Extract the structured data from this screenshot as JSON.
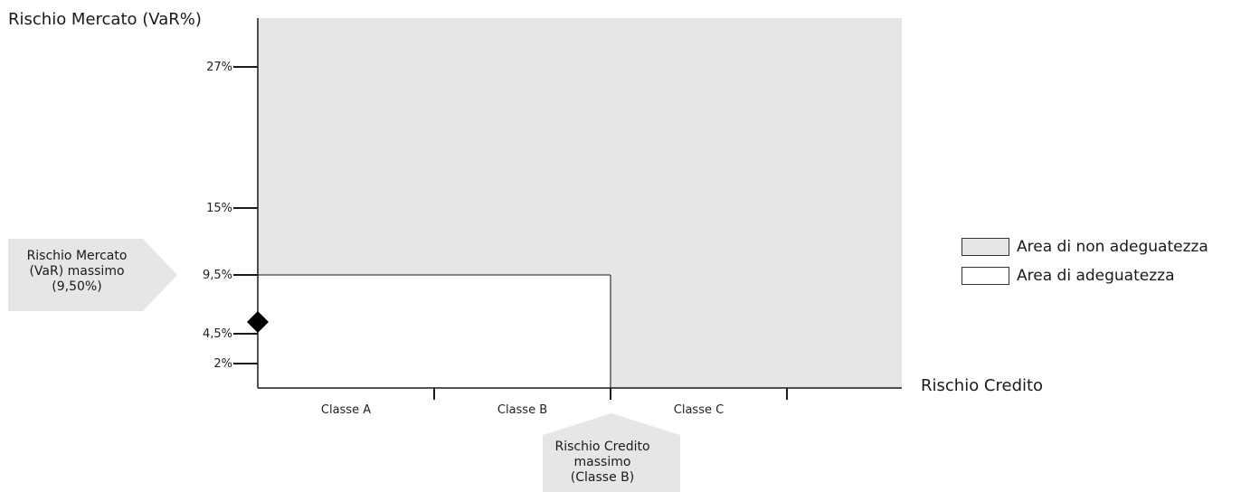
{
  "chart_data": {
    "type": "area",
    "ylabel": "Rischio Mercato (VaR%)",
    "xlabel": "Rischio Credito",
    "y_ticks": [
      {
        "value": 2,
        "label": "2%"
      },
      {
        "value": 4.5,
        "label": "4,5%"
      },
      {
        "value": 9.5,
        "label": "9,5%"
      },
      {
        "value": 15,
        "label": "15%"
      },
      {
        "value": 27,
        "label": "27%"
      }
    ],
    "categories": [
      "Classe A",
      "Classe B",
      "Classe C"
    ],
    "adequacy_limit": {
      "max_var": 9.5,
      "max_credit_class": "Classe B"
    },
    "point": {
      "category": "Classe A",
      "position": "start",
      "value": 5.5
    },
    "legend": [
      {
        "label": "Area di non adeguatezza",
        "color": "#e6e6e6"
      },
      {
        "label": "Area di adeguatezza",
        "color": "#ffffff"
      }
    ],
    "annotations": {
      "var_max": "Rischio Mercato\n(VaR) massimo\n(9,50%)",
      "credit_max": "Rischio Credito\nmassimo\n(Classe B)"
    }
  },
  "colors": {
    "non_adequate": "#e6e6e6",
    "adequate": "#ffffff",
    "callout": "#e6e6e6",
    "axis": "#1a1a1a",
    "marker": "#000000"
  }
}
